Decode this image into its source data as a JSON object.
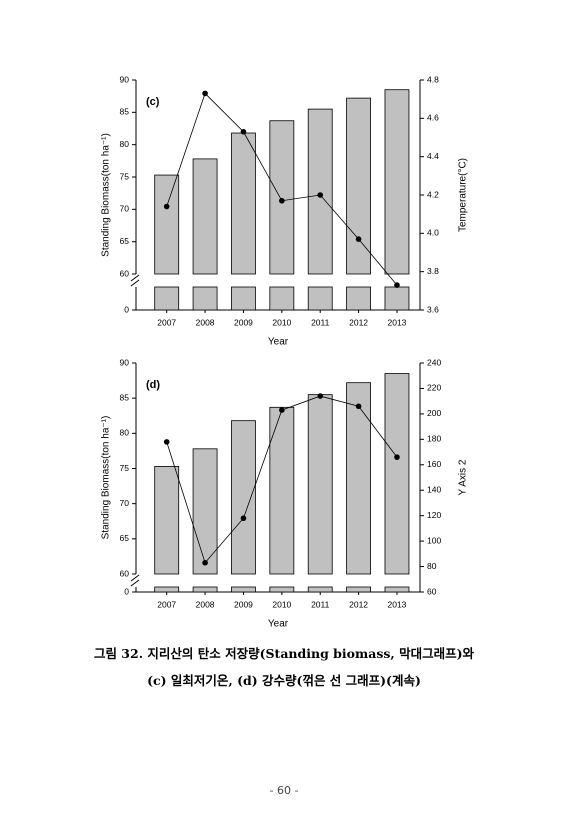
{
  "chart_data": [
    {
      "type": "bar",
      "label": "(c)",
      "xlabel": "Year",
      "ylabel": "Standing Biomass(ton ha⁻¹)",
      "y2label": "Temperature(°C)",
      "categories": [
        "2007",
        "2008",
        "2009",
        "2010",
        "2011",
        "2012",
        "2013"
      ],
      "series": [
        {
          "color": "#c0c0c0",
          "values": [
            75.3,
            77.8,
            81.8,
            83.7,
            85.5,
            87.2,
            88.5
          ]
        },
        {
          "type": "line",
          "axis": "y2",
          "color": "#000000",
          "values": [
            4.14,
            4.73,
            4.53,
            4.17,
            4.2,
            3.97,
            3.73
          ]
        }
      ],
      "ylim": [
        0,
        90
      ],
      "ybreak": 60,
      "yticks": [
        0,
        60,
        65,
        70,
        75,
        80,
        85,
        90
      ],
      "y2lim": [
        3.6,
        4.8
      ],
      "y2ticks": [
        3.6,
        3.8,
        {
          "value": 4,
          "label": "4.0"
        },
        4.2,
        4.4,
        4.6,
        4.8
      ]
    },
    {
      "type": "bar",
      "label": "(d)",
      "xlabel": "Year",
      "ylabel": "Standing Biomass(ton ha⁻¹)",
      "y2label": "Y Axis 2",
      "categories": [
        "2007",
        "2008",
        "2009",
        "2010",
        "2011",
        "2012",
        "2013"
      ],
      "series": [
        {
          "color": "#c0c0c0",
          "values": [
            75.3,
            77.8,
            81.8,
            83.7,
            85.5,
            87.2,
            88.5
          ]
        },
        {
          "type": "line",
          "axis": "y2",
          "color": "#000000",
          "values": [
            178,
            83,
            118,
            203,
            214,
            206,
            166
          ]
        }
      ],
      "ylim": [
        0,
        90
      ],
      "ybreak": 60,
      "yticks": [
        0,
        60,
        65,
        70,
        75,
        80,
        85,
        90
      ],
      "y2lim": [
        60,
        240
      ],
      "y2ticks": [
        60,
        80,
        100,
        120,
        140,
        160,
        180,
        200,
        220,
        240
      ]
    }
  ],
  "caption": [
    "그림 32. 지리산의 탄소 저장량(Standing biomass, 막대그래프)와",
    "(c) 일최저기온, (d) 강수량(꺾은 선 그래프)(계속)"
  ],
  "page_number": "- 60 -"
}
